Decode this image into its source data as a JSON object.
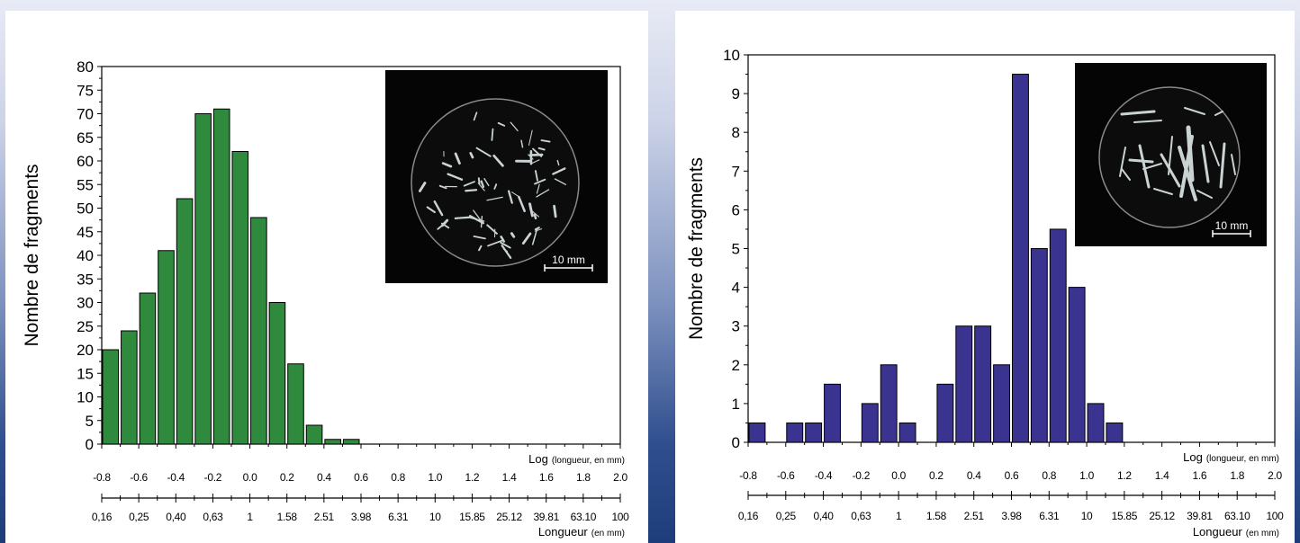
{
  "chart_data": [
    {
      "type": "bar",
      "ylabel": "Nombre de fragments",
      "ylim": [
        0,
        80
      ],
      "yticks": [
        0,
        5,
        10,
        15,
        20,
        25,
        30,
        35,
        40,
        45,
        50,
        55,
        60,
        65,
        70,
        75,
        80
      ],
      "xlim": [
        -0.8,
        2.0
      ],
      "bar_color": "#2f8a3e",
      "x": [
        -0.8,
        -0.7,
        -0.6,
        -0.5,
        -0.4,
        -0.3,
        -0.2,
        -0.1,
        0.0,
        0.1,
        0.2,
        0.3,
        0.4,
        0.5
      ],
      "values": [
        20,
        24,
        32,
        41,
        52,
        70,
        71,
        62,
        48,
        30,
        17,
        4,
        1,
        1
      ],
      "log_axis_label": "Log",
      "log_axis_unit": "(longueur, en mm)",
      "log_tick_labels": [
        "-0.8",
        "-0.6",
        "-0.4",
        "-0.2",
        "0.0",
        "0.2",
        "0.4",
        "0.6",
        "0.8",
        "1.0",
        "1.2",
        "1.4",
        "1.6",
        "1.8",
        "2.0"
      ],
      "length_tick_labels": [
        "0,16",
        "0,25",
        "0,40",
        "0,63",
        "1",
        "1.58",
        "2.51",
        "3.98",
        "6.31",
        "10",
        "15.85",
        "25.12",
        "39.81",
        "63.10",
        "100"
      ],
      "length_axis_label": "Longueur",
      "length_axis_unit": "(en mm)",
      "inset_scale": "10 mm"
    },
    {
      "type": "bar",
      "ylabel": "Nombre de fragments",
      "ylim": [
        0,
        10
      ],
      "yticks": [
        0,
        1,
        2,
        3,
        4,
        5,
        6,
        7,
        8,
        9,
        10
      ],
      "xlim": [
        -0.8,
        2.0
      ],
      "bar_color": "#3a3490",
      "x": [
        -0.8,
        -0.7,
        -0.6,
        -0.5,
        -0.4,
        -0.3,
        -0.2,
        -0.1,
        0.0,
        0.1,
        0.2,
        0.3,
        0.4,
        0.5,
        0.6,
        0.7,
        0.8,
        0.9,
        1.0,
        1.1,
        1.2
      ],
      "values": [
        0.5,
        0,
        0.5,
        0.5,
        1.5,
        0,
        1,
        2,
        0.5,
        0,
        1.5,
        3,
        3,
        2,
        9.5,
        5,
        5.5,
        4,
        1,
        0.5,
        0
      ],
      "log_axis_label": "Log",
      "log_axis_unit": "(longueur, en mm)",
      "log_tick_labels": [
        "-0.8",
        "-0.6",
        "-0.4",
        "-0.2",
        "0.0",
        "0.2",
        "0.4",
        "0.6",
        "0.8",
        "1.0",
        "1.2",
        "1.4",
        "1.6",
        "1.8",
        "2.0"
      ],
      "length_tick_labels": [
        "0,16",
        "0,25",
        "0,40",
        "0,63",
        "1",
        "1.58",
        "2.51",
        "3.98",
        "6.31",
        "10",
        "15.85",
        "25.12",
        "39.81",
        "63.10",
        "100"
      ],
      "length_axis_label": "Longueur",
      "length_axis_unit": "(en mm)",
      "inset_scale": "10 mm"
    }
  ]
}
